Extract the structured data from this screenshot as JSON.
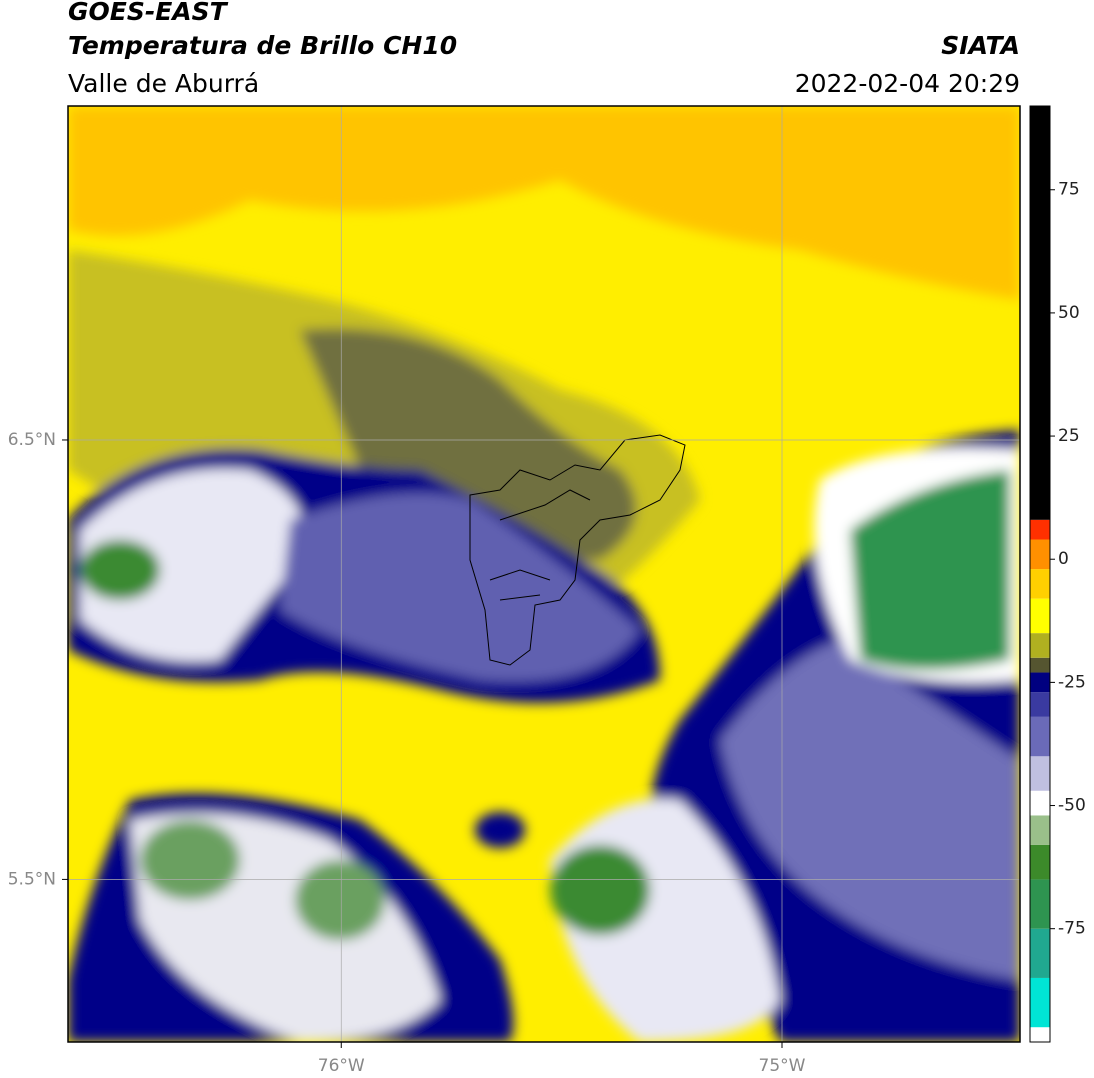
{
  "header": {
    "title": "GOES-EAST",
    "subtitle": "Temperatura de Brillo CH10",
    "region": "Valle de Aburrá",
    "source": "SIATA",
    "datetime": "2022-02-04 20:29"
  },
  "map": {
    "xlim": [
      -76.62,
      -74.46
    ],
    "ylim": [
      5.13,
      7.26
    ],
    "xticks": [
      {
        "value": -76,
        "label": "76°W"
      },
      {
        "value": -75,
        "label": "75°W"
      }
    ],
    "yticks": [
      {
        "value": 6.5,
        "label": "6.5°N"
      },
      {
        "value": 5.5,
        "label": "5.5°N"
      }
    ],
    "grid": true
  },
  "colorbar": {
    "lim": [
      -98,
      92
    ],
    "ticks": [
      75,
      50,
      25,
      0,
      -25,
      -50,
      -75
    ],
    "colors": [
      {
        "value": -98,
        "color": "#ffffff"
      },
      {
        "value": -95,
        "color": "#00e5d5"
      },
      {
        "value": -85,
        "color": "#20a890"
      },
      {
        "value": -75,
        "color": "#2e9450"
      },
      {
        "value": -65,
        "color": "#3c8a2a"
      },
      {
        "value": -58,
        "color": "#9ac08a"
      },
      {
        "value": -52,
        "color": "#ffffff"
      },
      {
        "value": -47,
        "color": "#c0c0e0"
      },
      {
        "value": -40,
        "color": "#6a6ab8"
      },
      {
        "value": -32,
        "color": "#3a3aa0"
      },
      {
        "value": -27,
        "color": "#000080"
      },
      {
        "value": -23,
        "color": "#555530"
      },
      {
        "value": -20,
        "color": "#b0b020"
      },
      {
        "value": -15,
        "color": "#ffff00"
      },
      {
        "value": -8,
        "color": "#ffd000"
      },
      {
        "value": -2,
        "color": "#ff9000"
      },
      {
        "value": 4,
        "color": "#ff3000"
      },
      {
        "value": 8,
        "color": "#000000"
      }
    ]
  }
}
